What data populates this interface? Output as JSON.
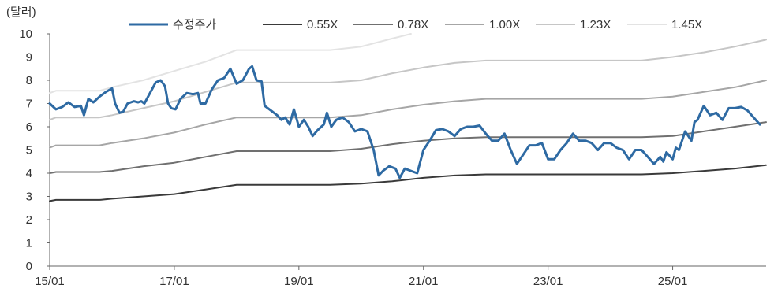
{
  "chart_data": {
    "type": "line",
    "unit_label": "(달러)",
    "y_ticks": [
      "0",
      "1",
      "2",
      "3",
      "4",
      "5",
      "6",
      "7",
      "8",
      "9",
      "10"
    ],
    "ylim": [
      0,
      10
    ],
    "x_ticks": [
      "15/01",
      "17/01",
      "19/01",
      "21/01",
      "23/01",
      "25/01"
    ],
    "x_tick_values": [
      0,
      2,
      4,
      6,
      8,
      10
    ],
    "xlim": [
      0,
      11.5
    ],
    "legend_placement": "top",
    "series": [
      {
        "name": "수정주가",
        "color": "#2e6aa3",
        "points": [
          [
            0,
            7.0
          ],
          [
            0.1,
            6.75
          ],
          [
            0.2,
            6.85
          ],
          [
            0.3,
            7.05
          ],
          [
            0.4,
            6.85
          ],
          [
            0.5,
            6.9
          ],
          [
            0.55,
            6.5
          ],
          [
            0.62,
            7.2
          ],
          [
            0.7,
            7.05
          ],
          [
            0.8,
            7.3
          ],
          [
            0.9,
            7.5
          ],
          [
            1.0,
            7.65
          ],
          [
            1.05,
            7.0
          ],
          [
            1.12,
            6.6
          ],
          [
            1.18,
            6.65
          ],
          [
            1.25,
            7.0
          ],
          [
            1.35,
            7.1
          ],
          [
            1.42,
            7.05
          ],
          [
            1.47,
            7.1
          ],
          [
            1.52,
            7.0
          ],
          [
            1.6,
            7.4
          ],
          [
            1.7,
            7.9
          ],
          [
            1.78,
            8.0
          ],
          [
            1.85,
            7.75
          ],
          [
            1.9,
            7.0
          ],
          [
            1.95,
            6.8
          ],
          [
            2.02,
            6.75
          ],
          [
            2.1,
            7.2
          ],
          [
            2.2,
            7.45
          ],
          [
            2.3,
            7.4
          ],
          [
            2.38,
            7.45
          ],
          [
            2.42,
            7.0
          ],
          [
            2.5,
            7.0
          ],
          [
            2.6,
            7.6
          ],
          [
            2.7,
            8.0
          ],
          [
            2.8,
            8.1
          ],
          [
            2.9,
            8.5
          ],
          [
            3.0,
            7.85
          ],
          [
            3.1,
            8.0
          ],
          [
            3.2,
            8.5
          ],
          [
            3.25,
            8.6
          ],
          [
            3.32,
            8.0
          ],
          [
            3.4,
            7.95
          ],
          [
            3.45,
            6.9
          ],
          [
            3.55,
            6.7
          ],
          [
            3.65,
            6.5
          ],
          [
            3.72,
            6.3
          ],
          [
            3.78,
            6.4
          ],
          [
            3.85,
            6.1
          ],
          [
            3.92,
            6.75
          ],
          [
            4.0,
            6.0
          ],
          [
            4.08,
            6.3
          ],
          [
            4.15,
            6.0
          ],
          [
            4.22,
            5.6
          ],
          [
            4.3,
            5.85
          ],
          [
            4.4,
            6.1
          ],
          [
            4.45,
            6.6
          ],
          [
            4.52,
            6.0
          ],
          [
            4.6,
            6.3
          ],
          [
            4.7,
            6.4
          ],
          [
            4.8,
            6.2
          ],
          [
            4.9,
            5.8
          ],
          [
            5.0,
            5.9
          ],
          [
            5.1,
            5.8
          ],
          [
            5.2,
            5.0
          ],
          [
            5.28,
            3.9
          ],
          [
            5.35,
            4.1
          ],
          [
            5.45,
            4.3
          ],
          [
            5.55,
            4.2
          ],
          [
            5.62,
            3.8
          ],
          [
            5.7,
            4.2
          ],
          [
            5.8,
            4.1
          ],
          [
            5.9,
            4.0
          ],
          [
            6.0,
            5.0
          ],
          [
            6.1,
            5.4
          ],
          [
            6.2,
            5.85
          ],
          [
            6.3,
            5.9
          ],
          [
            6.4,
            5.8
          ],
          [
            6.5,
            5.6
          ],
          [
            6.6,
            5.9
          ],
          [
            6.7,
            6.0
          ],
          [
            6.8,
            6.0
          ],
          [
            6.9,
            6.05
          ],
          [
            7.0,
            5.7
          ],
          [
            7.1,
            5.4
          ],
          [
            7.2,
            5.4
          ],
          [
            7.3,
            5.7
          ],
          [
            7.4,
            5.0
          ],
          [
            7.5,
            4.4
          ],
          [
            7.6,
            4.8
          ],
          [
            7.7,
            5.2
          ],
          [
            7.8,
            5.2
          ],
          [
            7.9,
            5.3
          ],
          [
            8.0,
            4.6
          ],
          [
            8.1,
            4.6
          ],
          [
            8.2,
            5.0
          ],
          [
            8.3,
            5.3
          ],
          [
            8.4,
            5.7
          ],
          [
            8.5,
            5.4
          ],
          [
            8.6,
            5.4
          ],
          [
            8.7,
            5.3
          ],
          [
            8.8,
            5.0
          ],
          [
            8.9,
            5.3
          ],
          [
            9.0,
            5.3
          ],
          [
            9.1,
            5.1
          ],
          [
            9.2,
            5.0
          ],
          [
            9.3,
            4.6
          ],
          [
            9.4,
            5.0
          ],
          [
            9.5,
            5.0
          ],
          [
            9.6,
            4.7
          ],
          [
            9.7,
            4.4
          ],
          [
            9.8,
            4.7
          ],
          [
            9.85,
            4.5
          ],
          [
            9.9,
            4.9
          ],
          [
            10.0,
            4.6
          ],
          [
            10.05,
            5.1
          ],
          [
            10.1,
            5.0
          ],
          [
            10.2,
            5.8
          ],
          [
            10.3,
            5.4
          ],
          [
            10.35,
            6.2
          ],
          [
            10.4,
            6.3
          ],
          [
            10.5,
            6.9
          ],
          [
            10.6,
            6.5
          ],
          [
            10.7,
            6.6
          ],
          [
            10.8,
            6.3
          ],
          [
            10.9,
            6.8
          ],
          [
            11.0,
            6.8
          ],
          [
            11.1,
            6.85
          ],
          [
            11.2,
            6.7
          ],
          [
            11.3,
            6.4
          ],
          [
            11.4,
            6.1
          ]
        ]
      },
      {
        "name": "0.55X",
        "color": "#3a3a3a",
        "points": [
          [
            0,
            2.8
          ],
          [
            0.1,
            2.85
          ],
          [
            0.8,
            2.85
          ],
          [
            1.0,
            2.9
          ],
          [
            1.5,
            3.0
          ],
          [
            2.0,
            3.1
          ],
          [
            2.5,
            3.3
          ],
          [
            3.0,
            3.5
          ],
          [
            3.5,
            3.5
          ],
          [
            4.0,
            3.5
          ],
          [
            4.5,
            3.5
          ],
          [
            5.0,
            3.55
          ],
          [
            5.5,
            3.65
          ],
          [
            6.0,
            3.8
          ],
          [
            6.5,
            3.9
          ],
          [
            7.0,
            3.95
          ],
          [
            7.5,
            3.95
          ],
          [
            8.0,
            3.95
          ],
          [
            8.5,
            3.95
          ],
          [
            9.0,
            3.95
          ],
          [
            9.5,
            3.95
          ],
          [
            10.0,
            4.0
          ],
          [
            10.5,
            4.1
          ],
          [
            11.0,
            4.2
          ],
          [
            11.5,
            4.35
          ]
        ]
      },
      {
        "name": "0.78X",
        "color": "#707070",
        "points": [
          [
            0,
            4.0
          ],
          [
            0.1,
            4.05
          ],
          [
            0.8,
            4.05
          ],
          [
            1.0,
            4.1
          ],
          [
            1.5,
            4.3
          ],
          [
            2.0,
            4.45
          ],
          [
            2.5,
            4.7
          ],
          [
            3.0,
            4.95
          ],
          [
            3.5,
            4.95
          ],
          [
            4.0,
            4.95
          ],
          [
            4.5,
            4.95
          ],
          [
            5.0,
            5.05
          ],
          [
            5.5,
            5.25
          ],
          [
            6.0,
            5.4
          ],
          [
            6.5,
            5.5
          ],
          [
            7.0,
            5.55
          ],
          [
            7.5,
            5.55
          ],
          [
            8.0,
            5.55
          ],
          [
            8.5,
            5.55
          ],
          [
            9.0,
            5.55
          ],
          [
            9.5,
            5.55
          ],
          [
            10.0,
            5.6
          ],
          [
            10.5,
            5.8
          ],
          [
            11.0,
            6.0
          ],
          [
            11.5,
            6.2
          ]
        ]
      },
      {
        "name": "1.00X",
        "color": "#a6a6a6",
        "points": [
          [
            0,
            5.1
          ],
          [
            0.1,
            5.2
          ],
          [
            0.8,
            5.2
          ],
          [
            1.0,
            5.3
          ],
          [
            1.5,
            5.5
          ],
          [
            2.0,
            5.75
          ],
          [
            2.5,
            6.1
          ],
          [
            3.0,
            6.4
          ],
          [
            3.5,
            6.4
          ],
          [
            4.0,
            6.4
          ],
          [
            4.5,
            6.4
          ],
          [
            5.0,
            6.5
          ],
          [
            5.5,
            6.75
          ],
          [
            6.0,
            6.95
          ],
          [
            6.5,
            7.1
          ],
          [
            7.0,
            7.2
          ],
          [
            7.5,
            7.2
          ],
          [
            8.0,
            7.2
          ],
          [
            8.5,
            7.2
          ],
          [
            9.0,
            7.2
          ],
          [
            9.5,
            7.2
          ],
          [
            10.0,
            7.3
          ],
          [
            10.5,
            7.5
          ],
          [
            11.0,
            7.7
          ],
          [
            11.5,
            8.0
          ]
        ]
      },
      {
        "name": "1.23X",
        "color": "#c6c6c6",
        "points": [
          [
            0,
            6.3
          ],
          [
            0.1,
            6.4
          ],
          [
            0.8,
            6.4
          ],
          [
            1.0,
            6.5
          ],
          [
            1.5,
            6.8
          ],
          [
            2.0,
            7.1
          ],
          [
            2.5,
            7.5
          ],
          [
            3.0,
            7.9
          ],
          [
            3.5,
            7.9
          ],
          [
            4.0,
            7.9
          ],
          [
            4.5,
            7.9
          ],
          [
            5.0,
            8.0
          ],
          [
            5.5,
            8.3
          ],
          [
            6.0,
            8.55
          ],
          [
            6.5,
            8.75
          ],
          [
            7.0,
            8.85
          ],
          [
            7.5,
            8.85
          ],
          [
            8.0,
            8.85
          ],
          [
            8.5,
            8.85
          ],
          [
            9.0,
            8.85
          ],
          [
            9.5,
            8.85
          ],
          [
            10.0,
            9.0
          ],
          [
            10.5,
            9.2
          ],
          [
            11.0,
            9.45
          ],
          [
            11.5,
            9.75
          ]
        ]
      },
      {
        "name": "1.45X",
        "color": "#e3e3e3",
        "points": [
          [
            0,
            7.45
          ],
          [
            0.1,
            7.55
          ],
          [
            0.8,
            7.55
          ],
          [
            1.0,
            7.7
          ],
          [
            1.5,
            8.0
          ],
          [
            2.0,
            8.4
          ],
          [
            2.5,
            8.8
          ],
          [
            3.0,
            9.3
          ],
          [
            3.5,
            9.3
          ],
          [
            4.0,
            9.3
          ],
          [
            4.5,
            9.3
          ],
          [
            5.0,
            9.45
          ],
          [
            5.5,
            9.8
          ],
          [
            5.8,
            10.0
          ]
        ]
      }
    ]
  }
}
